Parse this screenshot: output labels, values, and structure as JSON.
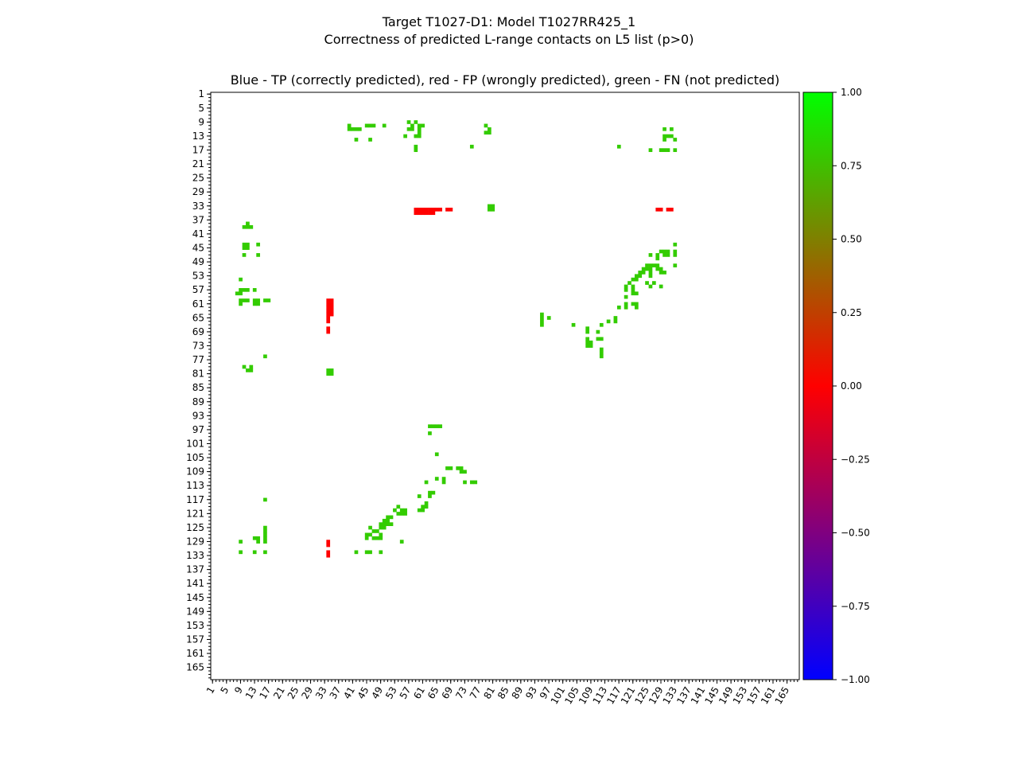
{
  "title": "Target T1027-D1: Model T1027RR425_1",
  "subtitle": "Correctness of predicted L-range contacts on L5 list (p>0)",
  "plot_title": "Blue - TP (correctly predicted), red - FP (wrongly predicted), green - FN (not predicted)",
  "colors": {
    "fn_green": "#33cc00",
    "fp_red": "#ff0000",
    "colorbar_stops": [
      "#0000ff",
      "#ff0000",
      "#00ff00"
    ]
  },
  "chart_data": {
    "type": "heatmap",
    "title": "Blue - TP (correctly predicted), red - FP (wrongly predicted), green - FN (not predicted)",
    "xlabel": "",
    "ylabel": "",
    "xlim": [
      1,
      168
    ],
    "ylim": [
      1,
      168
    ],
    "x_ticks": [
      "1",
      "5",
      "9",
      "13",
      "17",
      "21",
      "25",
      "29",
      "33",
      "37",
      "41",
      "45",
      "49",
      "53",
      "57",
      "61",
      "65",
      "69",
      "73",
      "77",
      "81",
      "85",
      "89",
      "93",
      "97",
      "101",
      "105",
      "109",
      "113",
      "117",
      "121",
      "125",
      "129",
      "133",
      "137",
      "141",
      "145",
      "149",
      "153",
      "157",
      "161",
      "165"
    ],
    "y_ticks": [
      "1",
      "5",
      "9",
      "13",
      "17",
      "21",
      "25",
      "29",
      "33",
      "37",
      "41",
      "45",
      "49",
      "53",
      "57",
      "61",
      "65",
      "69",
      "73",
      "77",
      "81",
      "85",
      "89",
      "93",
      "97",
      "101",
      "105",
      "109",
      "113",
      "117",
      "121",
      "125",
      "129",
      "133",
      "137",
      "141",
      "145",
      "149",
      "153",
      "157",
      "161",
      "165"
    ],
    "colorbar": {
      "min": -1.0,
      "max": 1.0,
      "tick_labels": [
        "1.00",
        "0.75",
        "0.50",
        "0.25",
        "0.00",
        "−0.25",
        "−0.50",
        "−0.75",
        "−1.00"
      ],
      "tick_values": [
        1.0,
        0.75,
        0.5,
        0.25,
        0.0,
        -0.25,
        -0.5,
        -0.75,
        -1.0
      ]
    },
    "false_positives": [
      [
        59,
        34
      ],
      [
        60,
        34
      ],
      [
        61,
        34
      ],
      [
        62,
        34
      ],
      [
        63,
        34
      ],
      [
        64,
        34
      ],
      [
        59,
        35
      ],
      [
        60,
        35
      ],
      [
        61,
        35
      ],
      [
        62,
        35
      ],
      [
        63,
        35
      ],
      [
        64,
        35
      ],
      [
        65,
        34
      ],
      [
        66,
        34
      ],
      [
        68,
        34
      ],
      [
        69,
        34
      ],
      [
        128,
        34
      ],
      [
        129,
        34
      ],
      [
        131,
        34
      ],
      [
        132,
        34
      ],
      [
        34,
        60
      ],
      [
        35,
        60
      ],
      [
        34,
        61
      ],
      [
        35,
        61
      ],
      [
        34,
        62
      ],
      [
        35,
        62
      ],
      [
        34,
        63
      ],
      [
        35,
        63
      ],
      [
        34,
        64
      ],
      [
        35,
        64
      ],
      [
        34,
        65
      ],
      [
        34,
        66
      ],
      [
        34,
        68
      ],
      [
        34,
        69
      ],
      [
        34,
        129
      ],
      [
        34,
        130
      ],
      [
        34,
        132
      ],
      [
        34,
        133
      ]
    ],
    "false_negatives": [
      [
        40,
        10
      ],
      [
        40,
        11
      ],
      [
        41,
        11
      ],
      [
        42,
        11
      ],
      [
        43,
        11
      ],
      [
        45,
        10
      ],
      [
        46,
        10
      ],
      [
        47,
        10
      ],
      [
        50,
        10
      ],
      [
        58,
        10
      ],
      [
        57,
        9
      ],
      [
        59,
        9
      ],
      [
        57,
        11
      ],
      [
        58,
        11
      ],
      [
        60,
        10
      ],
      [
        60,
        11
      ],
      [
        61,
        10
      ],
      [
        79,
        10
      ],
      [
        80,
        11
      ],
      [
        79,
        12
      ],
      [
        80,
        12
      ],
      [
        130,
        11
      ],
      [
        132,
        11
      ],
      [
        130,
        13
      ],
      [
        131,
        13
      ],
      [
        132,
        13
      ],
      [
        129,
        17
      ],
      [
        130,
        17
      ],
      [
        131,
        17
      ],
      [
        133,
        17
      ],
      [
        126,
        17
      ],
      [
        117,
        16
      ],
      [
        75,
        16
      ],
      [
        42,
        14
      ],
      [
        46,
        14
      ],
      [
        56,
        13
      ],
      [
        59,
        13
      ],
      [
        60,
        12
      ],
      [
        60,
        13
      ],
      [
        59,
        16
      ],
      [
        59,
        17
      ],
      [
        130,
        14
      ],
      [
        133,
        14
      ],
      [
        11,
        38
      ],
      [
        10,
        39
      ],
      [
        11,
        39
      ],
      [
        12,
        39
      ],
      [
        10,
        44
      ],
      [
        11,
        44
      ],
      [
        10,
        45
      ],
      [
        11,
        45
      ],
      [
        14,
        44
      ],
      [
        10,
        47
      ],
      [
        14,
        47
      ],
      [
        9,
        54
      ],
      [
        9,
        57
      ],
      [
        8,
        58
      ],
      [
        9,
        58
      ],
      [
        10,
        57
      ],
      [
        11,
        57
      ],
      [
        13,
        57
      ],
      [
        9,
        60
      ],
      [
        9,
        61
      ],
      [
        10,
        60
      ],
      [
        11,
        60
      ],
      [
        13,
        60
      ],
      [
        14,
        60
      ],
      [
        13,
        61
      ],
      [
        14,
        61
      ],
      [
        16,
        60
      ],
      [
        17,
        60
      ],
      [
        16,
        76
      ],
      [
        10,
        79
      ],
      [
        11,
        80
      ],
      [
        12,
        80
      ],
      [
        12,
        79
      ],
      [
        34,
        80
      ],
      [
        35,
        80
      ],
      [
        34,
        81
      ],
      [
        35,
        81
      ],
      [
        80,
        33
      ],
      [
        81,
        33
      ],
      [
        80,
        34
      ],
      [
        81,
        34
      ],
      [
        63,
        96
      ],
      [
        64,
        96
      ],
      [
        65,
        96
      ],
      [
        66,
        96
      ],
      [
        63,
        98
      ],
      [
        65,
        104
      ],
      [
        68,
        108
      ],
      [
        69,
        108
      ],
      [
        71,
        108
      ],
      [
        72,
        108
      ],
      [
        72,
        109
      ],
      [
        73,
        109
      ],
      [
        67,
        111
      ],
      [
        67,
        112
      ],
      [
        65,
        111
      ],
      [
        62,
        112
      ],
      [
        73,
        112
      ],
      [
        75,
        112
      ],
      [
        76,
        112
      ],
      [
        63,
        115
      ],
      [
        64,
        115
      ],
      [
        63,
        116
      ],
      [
        60,
        116
      ],
      [
        61,
        119
      ],
      [
        62,
        119
      ],
      [
        61,
        120
      ],
      [
        60,
        120
      ],
      [
        62,
        118
      ],
      [
        54,
        119
      ],
      [
        55,
        120
      ],
      [
        53,
        120
      ],
      [
        54,
        121
      ],
      [
        55,
        121
      ],
      [
        56,
        120
      ],
      [
        56,
        121
      ],
      [
        51,
        122
      ],
      [
        52,
        122
      ],
      [
        50,
        123
      ],
      [
        51,
        123
      ],
      [
        49,
        124
      ],
      [
        50,
        124
      ],
      [
        51,
        124
      ],
      [
        52,
        124
      ],
      [
        46,
        125
      ],
      [
        49,
        125
      ],
      [
        50,
        125
      ],
      [
        45,
        127
      ],
      [
        46,
        127
      ],
      [
        45,
        128
      ],
      [
        47,
        128
      ],
      [
        48,
        128
      ],
      [
        49,
        128
      ],
      [
        49,
        127
      ],
      [
        48,
        126
      ],
      [
        47,
        126
      ],
      [
        55,
        129
      ],
      [
        42,
        132
      ],
      [
        45,
        132
      ],
      [
        46,
        132
      ],
      [
        49,
        132
      ],
      [
        16,
        125
      ],
      [
        16,
        126
      ],
      [
        16,
        127
      ],
      [
        16,
        128
      ],
      [
        16,
        129
      ],
      [
        14,
        128
      ],
      [
        13,
        128
      ],
      [
        14,
        129
      ],
      [
        9,
        129
      ],
      [
        9,
        132
      ],
      [
        13,
        132
      ],
      [
        16,
        132
      ],
      [
        16,
        117
      ],
      [
        95,
        64
      ],
      [
        95,
        65
      ],
      [
        95,
        66
      ],
      [
        95,
        67
      ],
      [
        97,
        65
      ],
      [
        104,
        67
      ],
      [
        108,
        68
      ],
      [
        108,
        69
      ],
      [
        108,
        71
      ],
      [
        109,
        72
      ],
      [
        108,
        72
      ],
      [
        109,
        73
      ],
      [
        108,
        73
      ],
      [
        111,
        71
      ],
      [
        112,
        71
      ],
      [
        111,
        69
      ],
      [
        112,
        67
      ],
      [
        112,
        74
      ],
      [
        112,
        75
      ],
      [
        112,
        76
      ],
      [
        114,
        66
      ],
      [
        116,
        65
      ],
      [
        116,
        66
      ],
      [
        117,
        62
      ],
      [
        119,
        59
      ],
      [
        119,
        61
      ],
      [
        119,
        62
      ],
      [
        121,
        57
      ],
      [
        121,
        58
      ],
      [
        122,
        58
      ],
      [
        121,
        61
      ],
      [
        122,
        61
      ],
      [
        122,
        62
      ],
      [
        119,
        57
      ],
      [
        120,
        55
      ],
      [
        121,
        54
      ],
      [
        122,
        54
      ],
      [
        123,
        53
      ],
      [
        122,
        53
      ],
      [
        123,
        52
      ],
      [
        124,
        51
      ],
      [
        124,
        52
      ],
      [
        125,
        51
      ],
      [
        125,
        50
      ],
      [
        126,
        51
      ],
      [
        126,
        50
      ],
      [
        126,
        52
      ],
      [
        126,
        53
      ],
      [
        127,
        50
      ],
      [
        128,
        50
      ],
      [
        128,
        51
      ],
      [
        129,
        51
      ],
      [
        129,
        52
      ],
      [
        130,
        52
      ],
      [
        127,
        55
      ],
      [
        126,
        56
      ],
      [
        129,
        56
      ],
      [
        129,
        46
      ],
      [
        130,
        46
      ],
      [
        131,
        47
      ],
      [
        130,
        47
      ],
      [
        128,
        47
      ],
      [
        128,
        48
      ],
      [
        131,
        46
      ],
      [
        133,
        46
      ],
      [
        133,
        47
      ],
      [
        133,
        44
      ],
      [
        133,
        50
      ],
      [
        126,
        47
      ],
      [
        119,
        56
      ],
      [
        121,
        56
      ],
      [
        125,
        55
      ]
    ]
  }
}
